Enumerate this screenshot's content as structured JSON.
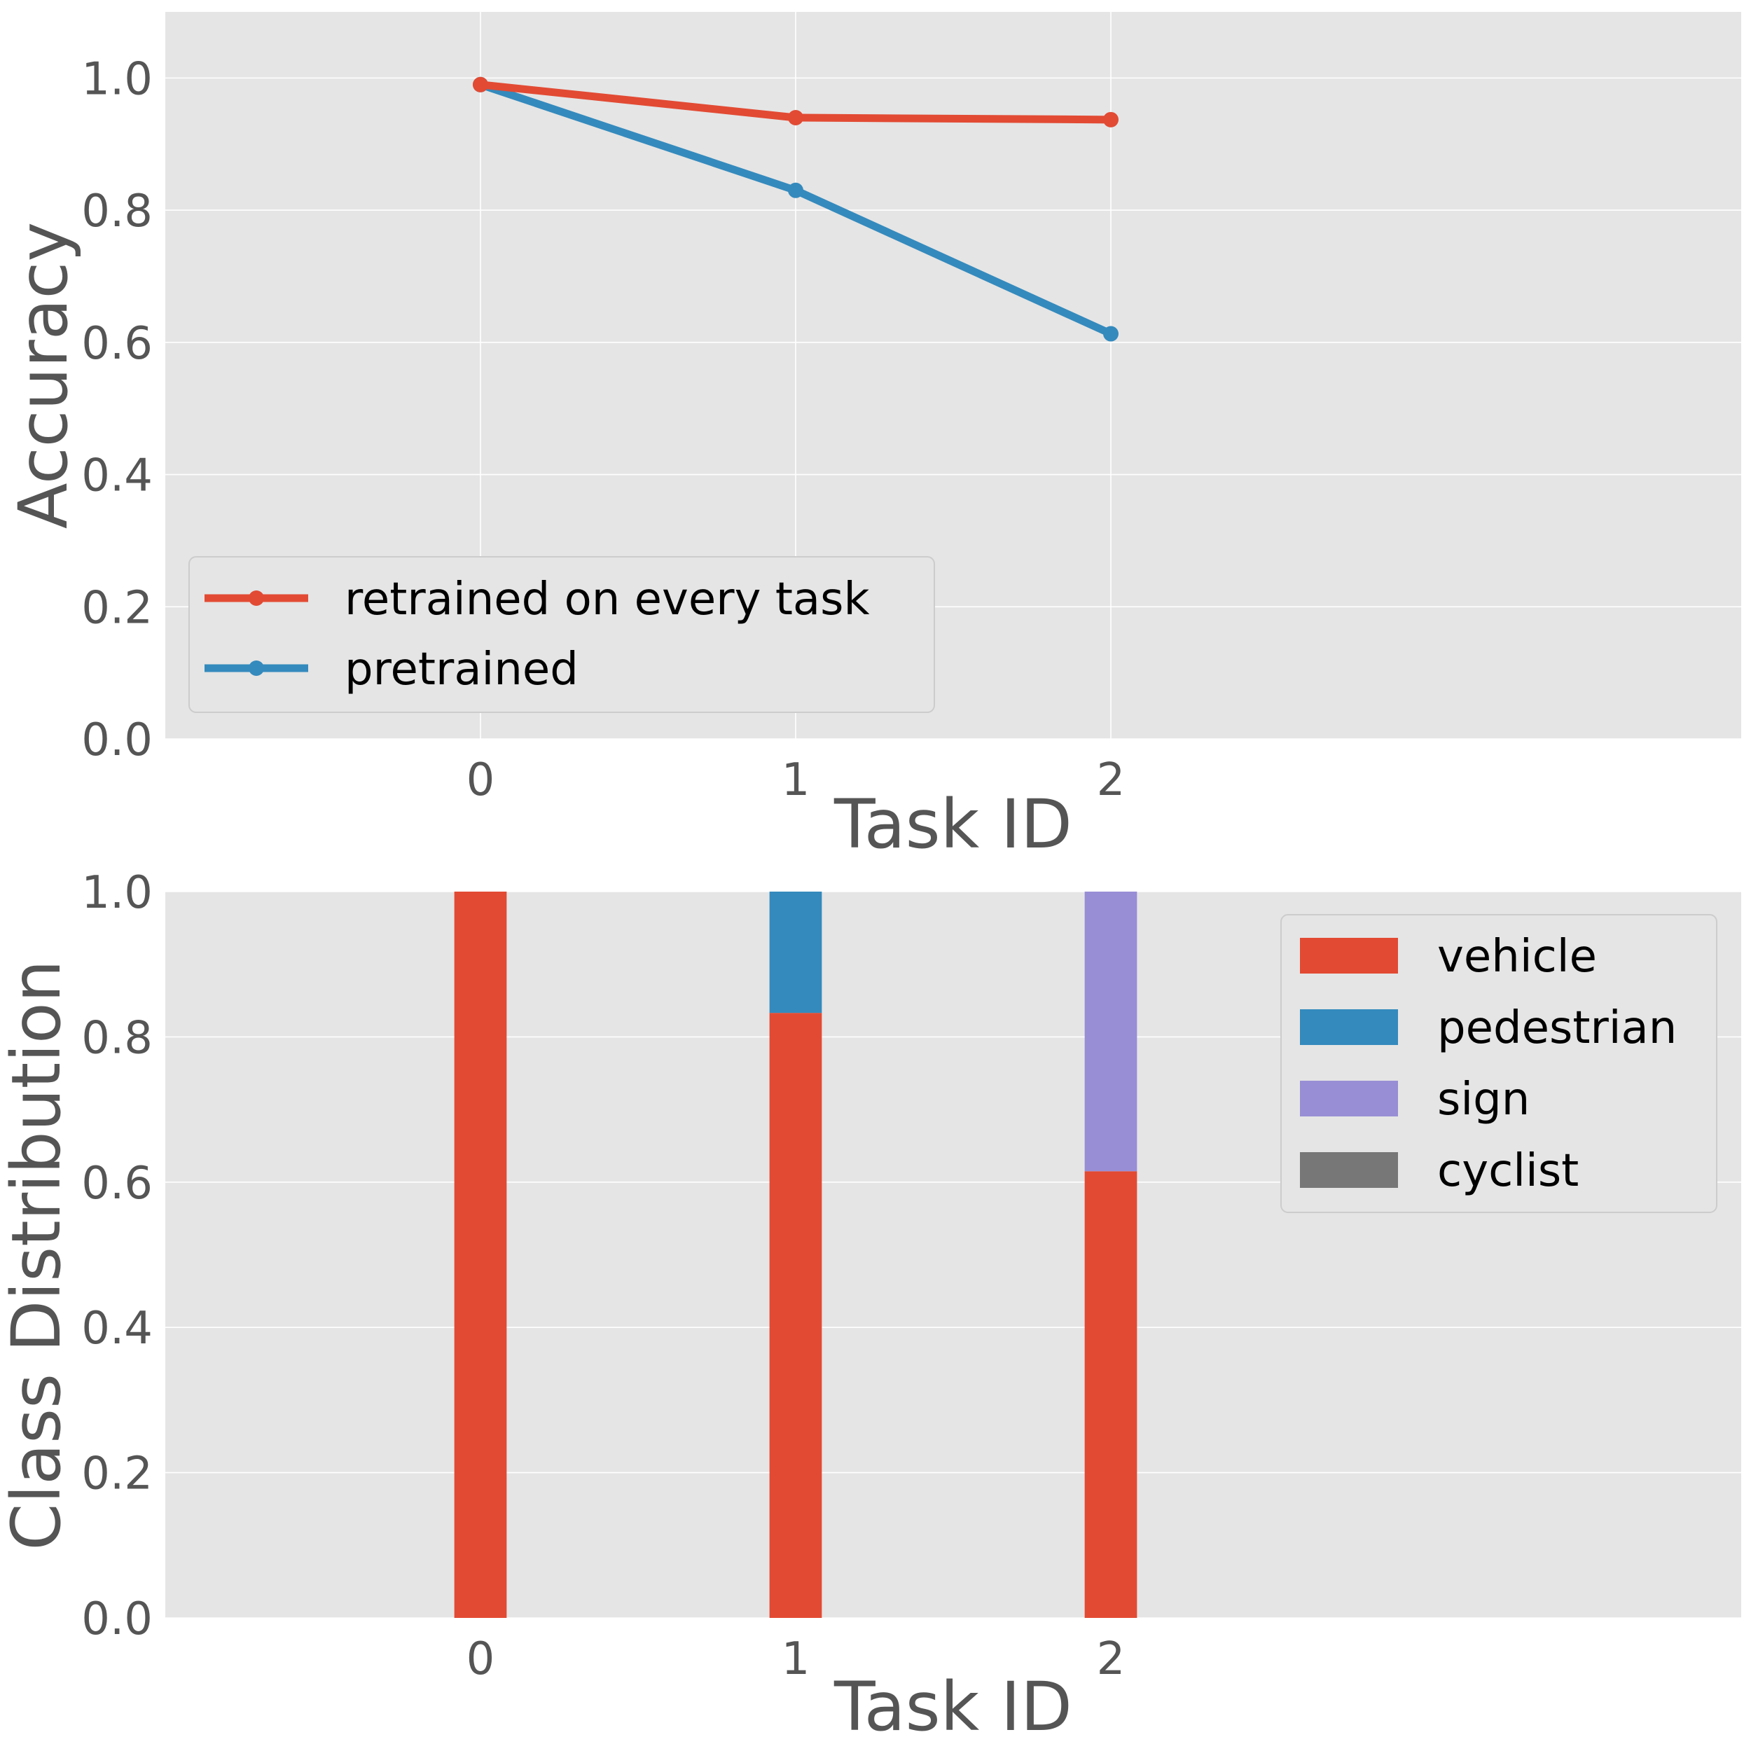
{
  "chart_data": [
    {
      "type": "line",
      "xlabel": "Task ID",
      "ylabel": "Accuracy",
      "x": [
        0,
        1,
        2
      ],
      "xlim": [
        -1,
        4
      ],
      "ylim": [
        0,
        1.1
      ],
      "xticks": [
        "0",
        "1",
        "2"
      ],
      "yticks": [
        "0.0",
        "0.2",
        "0.4",
        "0.6",
        "0.8",
        "1.0"
      ],
      "grid": true,
      "legend": "lower-left",
      "series": [
        {
          "name": "retrained on every task",
          "values": [
            0.99,
            0.94,
            0.937
          ],
          "color": "#e24a33"
        },
        {
          "name": "pretrained",
          "values": [
            0.99,
            0.83,
            0.613
          ],
          "color": "#348abd"
        }
      ]
    },
    {
      "type": "bar",
      "stacked": true,
      "xlabel": "Task ID",
      "ylabel": "Class Distribution",
      "categories": [
        "0",
        "1",
        "2"
      ],
      "xlim": [
        -1,
        4
      ],
      "ylim": [
        0,
        1.0
      ],
      "xticks": [
        "0",
        "1",
        "2"
      ],
      "yticks": [
        "0.0",
        "0.2",
        "0.4",
        "0.6",
        "0.8",
        "1.0"
      ],
      "grid": true,
      "legend": "top-right",
      "series": [
        {
          "name": "vehicle",
          "values": [
            1.0,
            0.833,
            0.615
          ],
          "color": "#e24a33"
        },
        {
          "name": "pedestrian",
          "values": [
            0.0,
            0.167,
            0.0
          ],
          "color": "#348abd"
        },
        {
          "name": "sign",
          "values": [
            0.0,
            0.0,
            0.385
          ],
          "color": "#988ed5"
        },
        {
          "name": "cyclist",
          "values": [
            0.0,
            0.0,
            0.0
          ],
          "color": "#777777"
        }
      ]
    }
  ]
}
